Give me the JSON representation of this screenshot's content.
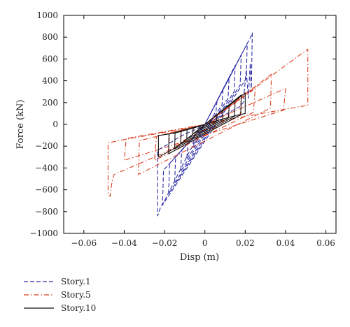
{
  "chart_data": {
    "type": "line",
    "title": "",
    "xlabel": "Disp (m)",
    "ylabel": "Force (kN)",
    "xlim": [
      -0.07,
      0.065
    ],
    "ylim": [
      -1000,
      1000
    ],
    "x_ticks": [
      -0.06,
      -0.04,
      -0.02,
      0,
      0.02,
      0.04,
      0.06
    ],
    "x_tick_labels": [
      "−0.06",
      "−0.04",
      "−0.02",
      "0",
      "0.02",
      "0.04",
      "0.06"
    ],
    "y_ticks": [
      -1000,
      -800,
      -600,
      -400,
      -200,
      0,
      200,
      400,
      600,
      800,
      1000
    ],
    "y_tick_labels": [
      "−1000",
      "−800",
      "−600",
      "−400",
      "−200",
      "0",
      "200",
      "400",
      "600",
      "800",
      "1000"
    ],
    "grid": false,
    "legend_position": "below-left",
    "series": [
      {
        "name": "Story.1",
        "color": "#2a2aa8",
        "dash": "dashed",
        "x": [
          0,
          0.004,
          0,
          -0.004,
          0,
          0.006,
          0.0055,
          -0.006,
          -0.0055,
          0,
          0.009,
          0.0085,
          -0.009,
          -0.0085,
          0,
          0.012,
          0.0115,
          -0.012,
          -0.0115,
          0,
          0.015,
          0.0145,
          -0.015,
          -0.0145,
          0,
          0.018,
          0.0175,
          -0.018,
          -0.0175,
          0,
          0.021,
          0.0205,
          -0.021,
          -0.0205,
          0,
          0.0235,
          0.0235,
          0.023,
          0.0225,
          0.0215,
          0.0205,
          0.019,
          0.017,
          0.014,
          0.01,
          0.005,
          0,
          -0.005,
          -0.01,
          -0.014,
          -0.018,
          -0.021,
          -0.0235,
          -0.0235,
          -0.023,
          -0.022,
          -0.02,
          -0.015,
          -0.008,
          0
        ],
        "y": [
          0,
          140,
          0,
          -140,
          0,
          210,
          120,
          -210,
          -120,
          0,
          320,
          180,
          -320,
          -180,
          0,
          430,
          240,
          -430,
          -240,
          0,
          540,
          300,
          -540,
          -300,
          0,
          640,
          360,
          -640,
          -360,
          0,
          740,
          420,
          -740,
          -420,
          0,
          830,
          840,
          300,
          560,
          240,
          500,
          200,
          160,
          130,
          90,
          50,
          0,
          -50,
          -90,
          -130,
          -180,
          -210,
          -240,
          -840,
          -820,
          -760,
          -700,
          -520,
          -260,
          0
        ]
      },
      {
        "name": "Story.5",
        "color": "#d9401f",
        "dash": "dashdot",
        "x": [
          0,
          0.006,
          0.0055,
          -0.006,
          -0.0055,
          0,
          0.012,
          0.0115,
          -0.012,
          -0.0115,
          0,
          0.018,
          0.0175,
          -0.018,
          -0.0175,
          0,
          0.025,
          0.024,
          -0.025,
          -0.024,
          0,
          0.033,
          0.0325,
          -0.033,
          -0.0325,
          0,
          0.04,
          0.039,
          -0.04,
          -0.039,
          0,
          0.051,
          0.051,
          0.04,
          0.025,
          0.01,
          0,
          -0.01,
          -0.025,
          -0.04,
          -0.048,
          -0.048,
          -0.047,
          -0.046,
          -0.045,
          -0.04,
          -0.03,
          -0.02,
          -0.01,
          0
        ],
        "y": [
          0,
          80,
          20,
          -80,
          -20,
          0,
          160,
          50,
          -160,
          -50,
          0,
          240,
          80,
          -240,
          -80,
          0,
          330,
          110,
          -330,
          -110,
          0,
          460,
          150,
          -460,
          -150,
          0,
          330,
          130,
          -330,
          -130,
          0,
          690,
          175,
          140,
          90,
          40,
          0,
          -40,
          -90,
          -140,
          -170,
          -640,
          -660,
          -520,
          -460,
          -420,
          -340,
          -260,
          -150,
          0
        ]
      },
      {
        "name": "Story.10",
        "color": "#111111",
        "dash": "solid",
        "x": [
          0,
          0.003,
          0.0028,
          -0.003,
          -0.0028,
          0,
          0.006,
          0.0058,
          -0.006,
          -0.0058,
          0,
          0.009,
          0.0088,
          -0.009,
          -0.0088,
          0,
          0.012,
          0.0118,
          -0.012,
          -0.0118,
          0,
          0.015,
          0.0148,
          -0.015,
          -0.0148,
          0,
          0.018,
          0.0178,
          -0.018,
          -0.0178,
          0,
          0.02,
          0.02,
          0.015,
          0.01,
          0.005,
          0,
          -0.005,
          -0.01,
          -0.015,
          -0.022,
          -0.023,
          -0.023,
          -0.015,
          -0.008,
          0
        ],
        "y": [
          0,
          45,
          15,
          -45,
          -15,
          0,
          90,
          30,
          -90,
          -30,
          0,
          135,
          45,
          -135,
          -45,
          0,
          180,
          60,
          -180,
          -60,
          0,
          225,
          75,
          -225,
          -75,
          0,
          270,
          90,
          -270,
          -90,
          0,
          290,
          100,
          80,
          55,
          30,
          0,
          -30,
          -55,
          -80,
          -100,
          -100,
          -300,
          -220,
          -120,
          0
        ]
      }
    ]
  }
}
